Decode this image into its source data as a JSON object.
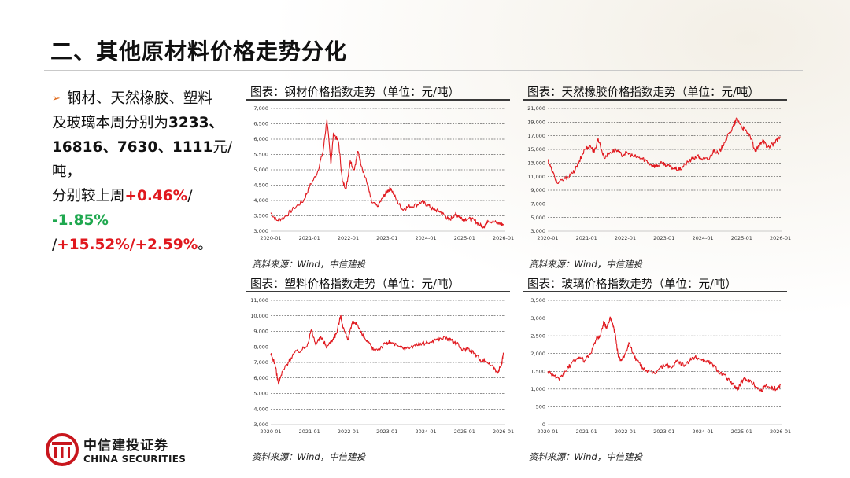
{
  "title": "二、其他原材料价格走势分化",
  "bullet": {
    "l1": "钢材、天然橡胶、塑料",
    "l2a": "及玻璃本周分别为",
    "l2b": "3233、",
    "l3a": "16816、7630、1111",
    "l3b": "元/吨，",
    "l4a": "分别较上周",
    "l4b": "+0.46%",
    "l4c": "/",
    "l5a": "-1.85%",
    "l5b": " /",
    "l5c": "+15.52%/+2.59%",
    "l5d": "。"
  },
  "source": "资料来源：Wind，中信建投",
  "logo": {
    "cn": "中信建投证券",
    "en": "CHINA SECURITIES"
  },
  "colors": {
    "line": "#e0181e",
    "gain": "#e0181e",
    "loss": "#1fa84f",
    "arrow": "#e06a1c"
  },
  "chart_data": [
    {
      "type": "line",
      "title": "图表：钢材价格指数走势（单位：元/吨）",
      "ylim": [
        3000,
        7000
      ],
      "yticks": [
        3000,
        3500,
        4000,
        4500,
        5000,
        5500,
        6000,
        6500,
        7000
      ],
      "ytick_labels": [
        "3,000",
        "3,500",
        "4,000",
        "4,500",
        "5,000",
        "5,500",
        "6,000",
        "6,500",
        "7,000"
      ],
      "xlim": [
        2020.0,
        2026.05
      ],
      "xticks": [
        2020,
        2021,
        2022,
        2023,
        2024,
        2025,
        2026
      ],
      "xtick_labels": [
        "2020-01",
        "2021-01",
        "2022-01",
        "2023-01",
        "2024-01",
        "2025-01",
        "2026-01"
      ],
      "series": [
        {
          "values": [
            [
              2020.0,
              3600
            ],
            [
              2020.15,
              3350
            ],
            [
              2020.35,
              3450
            ],
            [
              2020.6,
              3750
            ],
            [
              2020.85,
              4000
            ],
            [
              2021.0,
              4450
            ],
            [
              2021.2,
              4900
            ],
            [
              2021.35,
              5600
            ],
            [
              2021.45,
              6650
            ],
            [
              2021.55,
              5200
            ],
            [
              2021.62,
              6200
            ],
            [
              2021.75,
              5900
            ],
            [
              2021.85,
              4600
            ],
            [
              2021.95,
              4400
            ],
            [
              2022.05,
              5300
            ],
            [
              2022.15,
              5000
            ],
            [
              2022.25,
              5600
            ],
            [
              2022.35,
              5100
            ],
            [
              2022.5,
              4500
            ],
            [
              2022.6,
              3950
            ],
            [
              2022.75,
              3800
            ],
            [
              2022.9,
              4100
            ],
            [
              2023.0,
              4300
            ],
            [
              2023.1,
              4400
            ],
            [
              2023.25,
              4000
            ],
            [
              2023.4,
              3700
            ],
            [
              2023.55,
              3800
            ],
            [
              2023.75,
              3850
            ],
            [
              2023.9,
              3950
            ],
            [
              2024.05,
              3850
            ],
            [
              2024.2,
              3700
            ],
            [
              2024.35,
              3650
            ],
            [
              2024.5,
              3500
            ],
            [
              2024.6,
              3350
            ],
            [
              2024.75,
              3550
            ],
            [
              2024.85,
              3500
            ],
            [
              2024.95,
              3400
            ],
            [
              2025.1,
              3400
            ],
            [
              2025.25,
              3350
            ],
            [
              2025.4,
              3200
            ],
            [
              2025.5,
              3150
            ],
            [
              2025.6,
              3350
            ],
            [
              2025.75,
              3300
            ],
            [
              2025.9,
              3250
            ],
            [
              2026.0,
              3233
            ]
          ]
        }
      ]
    },
    {
      "type": "line",
      "title": "图表：天然橡胶价格指数走势（单位：元/吨）",
      "ylim": [
        3000,
        21000
      ],
      "yticks": [
        3000,
        5000,
        7000,
        9000,
        11000,
        13000,
        15000,
        17000,
        19000,
        21000
      ],
      "ytick_labels": [
        "3,000",
        "5,000",
        "7,000",
        "9,000",
        "11,000",
        "13,000",
        "15,000",
        "17,000",
        "19,000",
        "21,000"
      ],
      "xlim": [
        2020.0,
        2026.05
      ],
      "xticks": [
        2020,
        2021,
        2022,
        2023,
        2024,
        2025,
        2026
      ],
      "xtick_labels": [
        "2020-01",
        "2021-01",
        "2022-01",
        "2023-01",
        "2024-01",
        "2025-01",
        "2026-01"
      ],
      "series": [
        {
          "values": [
            [
              2020.0,
              13500
            ],
            [
              2020.1,
              12000
            ],
            [
              2020.25,
              10000
            ],
            [
              2020.45,
              10700
            ],
            [
              2020.65,
              11500
            ],
            [
              2020.8,
              13000
            ],
            [
              2020.95,
              15000
            ],
            [
              2021.1,
              15500
            ],
            [
              2021.2,
              14600
            ],
            [
              2021.3,
              16600
            ],
            [
              2021.45,
              13800
            ],
            [
              2021.6,
              14500
            ],
            [
              2021.75,
              15000
            ],
            [
              2021.9,
              14200
            ],
            [
              2022.05,
              14500
            ],
            [
              2022.2,
              14000
            ],
            [
              2022.35,
              13800
            ],
            [
              2022.5,
              13500
            ],
            [
              2022.65,
              12800
            ],
            [
              2022.8,
              12500
            ],
            [
              2022.95,
              13000
            ],
            [
              2023.1,
              12600
            ],
            [
              2023.25,
              12200
            ],
            [
              2023.4,
              12000
            ],
            [
              2023.55,
              12800
            ],
            [
              2023.7,
              13500
            ],
            [
              2023.85,
              14000
            ],
            [
              2024.0,
              13600
            ],
            [
              2024.15,
              13500
            ],
            [
              2024.3,
              15000
            ],
            [
              2024.4,
              14300
            ],
            [
              2024.55,
              16000
            ],
            [
              2024.7,
              17500
            ],
            [
              2024.8,
              18500
            ],
            [
              2024.88,
              19600
            ],
            [
              2025.0,
              18300
            ],
            [
              2025.1,
              17800
            ],
            [
              2025.25,
              16500
            ],
            [
              2025.35,
              14700
            ],
            [
              2025.45,
              15500
            ],
            [
              2025.55,
              16500
            ],
            [
              2025.65,
              15300
            ],
            [
              2025.8,
              15700
            ],
            [
              2025.9,
              16400
            ],
            [
              2026.0,
              16816
            ]
          ]
        }
      ]
    },
    {
      "type": "line",
      "title": "图表：塑料价格指数走势（单位：元/吨）",
      "ylim": [
        3000,
        11000
      ],
      "yticks": [
        3000,
        4000,
        5000,
        6000,
        7000,
        8000,
        9000,
        10000,
        11000
      ],
      "ytick_labels": [
        "3,000",
        "4,000",
        "5,000",
        "6,000",
        "7,000",
        "8,000",
        "9,000",
        "10,000",
        "11,000"
      ],
      "xlim": [
        2020.0,
        2026.05
      ],
      "xticks": [
        2020,
        2021,
        2022,
        2023,
        2024,
        2025,
        2026
      ],
      "xtick_labels": [
        "2020-01",
        "2021-01",
        "2022-01",
        "2023-01",
        "2024-01",
        "2025-01",
        "2026-01"
      ],
      "series": [
        {
          "values": [
            [
              2020.0,
              7500
            ],
            [
              2020.1,
              7000
            ],
            [
              2020.2,
              5600
            ],
            [
              2020.3,
              6400
            ],
            [
              2020.45,
              7000
            ],
            [
              2020.6,
              7600
            ],
            [
              2020.8,
              7800
            ],
            [
              2020.95,
              8200
            ],
            [
              2021.05,
              9100
            ],
            [
              2021.15,
              8200
            ],
            [
              2021.3,
              8600
            ],
            [
              2021.45,
              8000
            ],
            [
              2021.6,
              8500
            ],
            [
              2021.7,
              8900
            ],
            [
              2021.8,
              10000
            ],
            [
              2021.9,
              9000
            ],
            [
              2022.0,
              8500
            ],
            [
              2022.1,
              9500
            ],
            [
              2022.2,
              9600
            ],
            [
              2022.35,
              8800
            ],
            [
              2022.5,
              8300
            ],
            [
              2022.65,
              7800
            ],
            [
              2022.8,
              7900
            ],
            [
              2022.95,
              8200
            ],
            [
              2023.1,
              8300
            ],
            [
              2023.3,
              8000
            ],
            [
              2023.5,
              7900
            ],
            [
              2023.7,
              8100
            ],
            [
              2023.9,
              8200
            ],
            [
              2024.1,
              8300
            ],
            [
              2024.3,
              8500
            ],
            [
              2024.5,
              8600
            ],
            [
              2024.65,
              8400
            ],
            [
              2024.8,
              8200
            ],
            [
              2024.95,
              7800
            ],
            [
              2025.1,
              7900
            ],
            [
              2025.25,
              7600
            ],
            [
              2025.4,
              7200
            ],
            [
              2025.55,
              7100
            ],
            [
              2025.7,
              6800
            ],
            [
              2025.85,
              6400
            ],
            [
              2025.95,
              6800
            ],
            [
              2026.0,
              7630
            ]
          ]
        }
      ]
    },
    {
      "type": "line",
      "title": "图表：玻璃价格指数走势（单位：元/吨）",
      "ylim": [
        0,
        3500
      ],
      "yticks": [
        0,
        500,
        1000,
        1500,
        2000,
        2500,
        3000,
        3500
      ],
      "ytick_labels": [
        "0",
        "500",
        "1,000",
        "1,500",
        "2,000",
        "2,500",
        "3,000",
        "3,500"
      ],
      "xlim": [
        2020.0,
        2026.05
      ],
      "xticks": [
        2020,
        2021,
        2022,
        2023,
        2024,
        2025,
        2026
      ],
      "xtick_labels": [
        "2020-01",
        "2021-01",
        "2022-01",
        "2023-01",
        "2024-01",
        "2025-01",
        "2026-01"
      ],
      "series": [
        {
          "values": [
            [
              2020.0,
              1500
            ],
            [
              2020.15,
              1400
            ],
            [
              2020.3,
              1250
            ],
            [
              2020.45,
              1500
            ],
            [
              2020.6,
              1700
            ],
            [
              2020.8,
              1900
            ],
            [
              2020.95,
              1800
            ],
            [
              2021.1,
              2000
            ],
            [
              2021.25,
              2400
            ],
            [
              2021.35,
              2500
            ],
            [
              2021.45,
              2900
            ],
            [
              2021.52,
              2700
            ],
            [
              2021.6,
              3000
            ],
            [
              2021.68,
              2800
            ],
            [
              2021.75,
              2500
            ],
            [
              2021.82,
              1900
            ],
            [
              2021.9,
              1800
            ],
            [
              2022.0,
              2000
            ],
            [
              2022.1,
              2300
            ],
            [
              2022.2,
              2000
            ],
            [
              2022.3,
              1800
            ],
            [
              2022.45,
              1600
            ],
            [
              2022.6,
              1500
            ],
            [
              2022.75,
              1450
            ],
            [
              2022.9,
              1600
            ],
            [
              2023.05,
              1700
            ],
            [
              2023.2,
              1600
            ],
            [
              2023.35,
              1800
            ],
            [
              2023.5,
              1650
            ],
            [
              2023.65,
              1800
            ],
            [
              2023.8,
              1900
            ],
            [
              2023.95,
              1850
            ],
            [
              2024.1,
              1800
            ],
            [
              2024.25,
              1700
            ],
            [
              2024.4,
              1500
            ],
            [
              2024.55,
              1400
            ],
            [
              2024.7,
              1200
            ],
            [
              2024.8,
              1100
            ],
            [
              2024.9,
              1000
            ],
            [
              2025.0,
              1200
            ],
            [
              2025.1,
              1300
            ],
            [
              2025.25,
              1200
            ],
            [
              2025.4,
              1050
            ],
            [
              2025.5,
              950
            ],
            [
              2025.6,
              1100
            ],
            [
              2025.75,
              1050
            ],
            [
              2025.9,
              1000
            ],
            [
              2026.0,
              1111
            ]
          ]
        }
      ]
    }
  ]
}
